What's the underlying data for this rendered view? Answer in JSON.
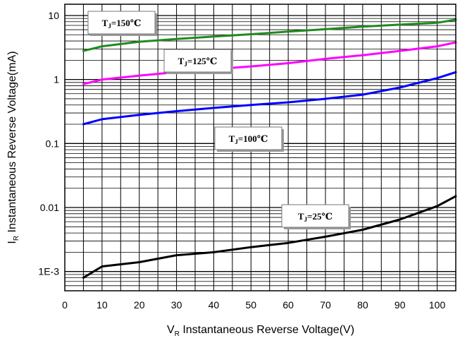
{
  "chart_data": {
    "type": "line",
    "title": "",
    "xlabel": {
      "main": "V",
      "sub": "R",
      "rest": " Instantaneous Reverse Voltage(V)"
    },
    "ylabel": {
      "main": "I",
      "sub": "R",
      "rest": " Instantaneous Reverse Voltage(mA)"
    },
    "xlim": [
      0,
      105
    ],
    "ylim": [
      0.0005,
      15
    ],
    "y_scale": "log",
    "grid": true,
    "x_ticks": [
      "0",
      "10",
      "20",
      "30",
      "40",
      "50",
      "60",
      "70",
      "80",
      "90",
      "100"
    ],
    "y_ticks": [
      {
        "value": 10,
        "label": "10"
      },
      {
        "value": 1,
        "label": "1"
      },
      {
        "value": 0.1,
        "label": "0.1"
      },
      {
        "value": 0.01,
        "label": "0.01"
      },
      {
        "value": 0.001,
        "label": "1E-3"
      }
    ],
    "series": [
      {
        "label_main": "T",
        "label_sub": "J",
        "label_rest": "=150℃",
        "color": "#1f8a1f",
        "x": [
          5,
          10,
          20,
          30,
          40,
          50,
          60,
          70,
          80,
          90,
          100,
          105
        ],
        "y": [
          2.8,
          3.3,
          3.9,
          4.3,
          4.7,
          5.1,
          5.6,
          6.1,
          6.7,
          7.2,
          7.7,
          8.6
        ]
      },
      {
        "label_main": "T",
        "label_sub": "J",
        "label_rest": "=125℃",
        "color": "#ff00ff",
        "x": [
          5,
          10,
          20,
          30,
          40,
          50,
          60,
          70,
          80,
          90,
          100,
          105
        ],
        "y": [
          0.85,
          1.0,
          1.15,
          1.3,
          1.45,
          1.6,
          1.8,
          2.1,
          2.4,
          2.8,
          3.3,
          3.8
        ]
      },
      {
        "label_main": "T",
        "label_sub": "J",
        "label_rest": "=100℃",
        "color": "#0000ff",
        "x": [
          5,
          10,
          20,
          30,
          40,
          50,
          60,
          70,
          80,
          90,
          100,
          105
        ],
        "y": [
          0.2,
          0.24,
          0.28,
          0.32,
          0.36,
          0.4,
          0.44,
          0.5,
          0.58,
          0.75,
          1.05,
          1.3
        ]
      },
      {
        "label_main": "T",
        "label_sub": "J",
        "label_rest": "=25℃",
        "color": "#000000",
        "x": [
          5,
          10,
          20,
          30,
          40,
          50,
          60,
          70,
          80,
          90,
          100,
          105
        ],
        "y": [
          0.0008,
          0.0012,
          0.0014,
          0.0018,
          0.002,
          0.0024,
          0.0028,
          0.0035,
          0.0045,
          0.0065,
          0.0105,
          0.015
        ]
      }
    ]
  }
}
